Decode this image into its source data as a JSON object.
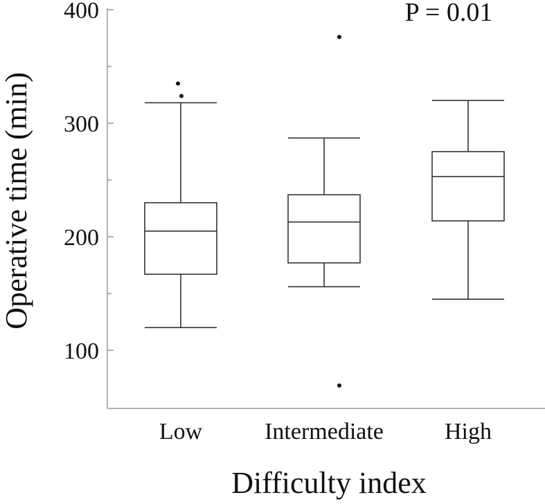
{
  "chart_data": {
    "type": "box",
    "title": "",
    "annotation": "P = 0.01",
    "xlabel": "Difficulty index",
    "ylabel": "Operative time (min)",
    "ylim": [
      50,
      400
    ],
    "yticks_labeled": [
      100,
      200,
      300,
      400
    ],
    "yticks_minor": [
      150,
      250,
      350
    ],
    "grid": false,
    "categories": [
      "Low",
      "Intermediate",
      "High"
    ],
    "boxes": [
      {
        "category": "Low",
        "whisker_low": 120,
        "q1": 167,
        "median": 205,
        "q3": 230,
        "whisker_high": 318,
        "outliers": [
          324,
          335
        ]
      },
      {
        "category": "Intermediate",
        "whisker_low": 156,
        "q1": 177,
        "median": 213,
        "q3": 237,
        "whisker_high": 287,
        "outliers": [
          69,
          376
        ]
      },
      {
        "category": "High",
        "whisker_low": 145,
        "q1": 214,
        "median": 253,
        "q3": 275,
        "whisker_high": 320,
        "outliers": []
      }
    ]
  }
}
